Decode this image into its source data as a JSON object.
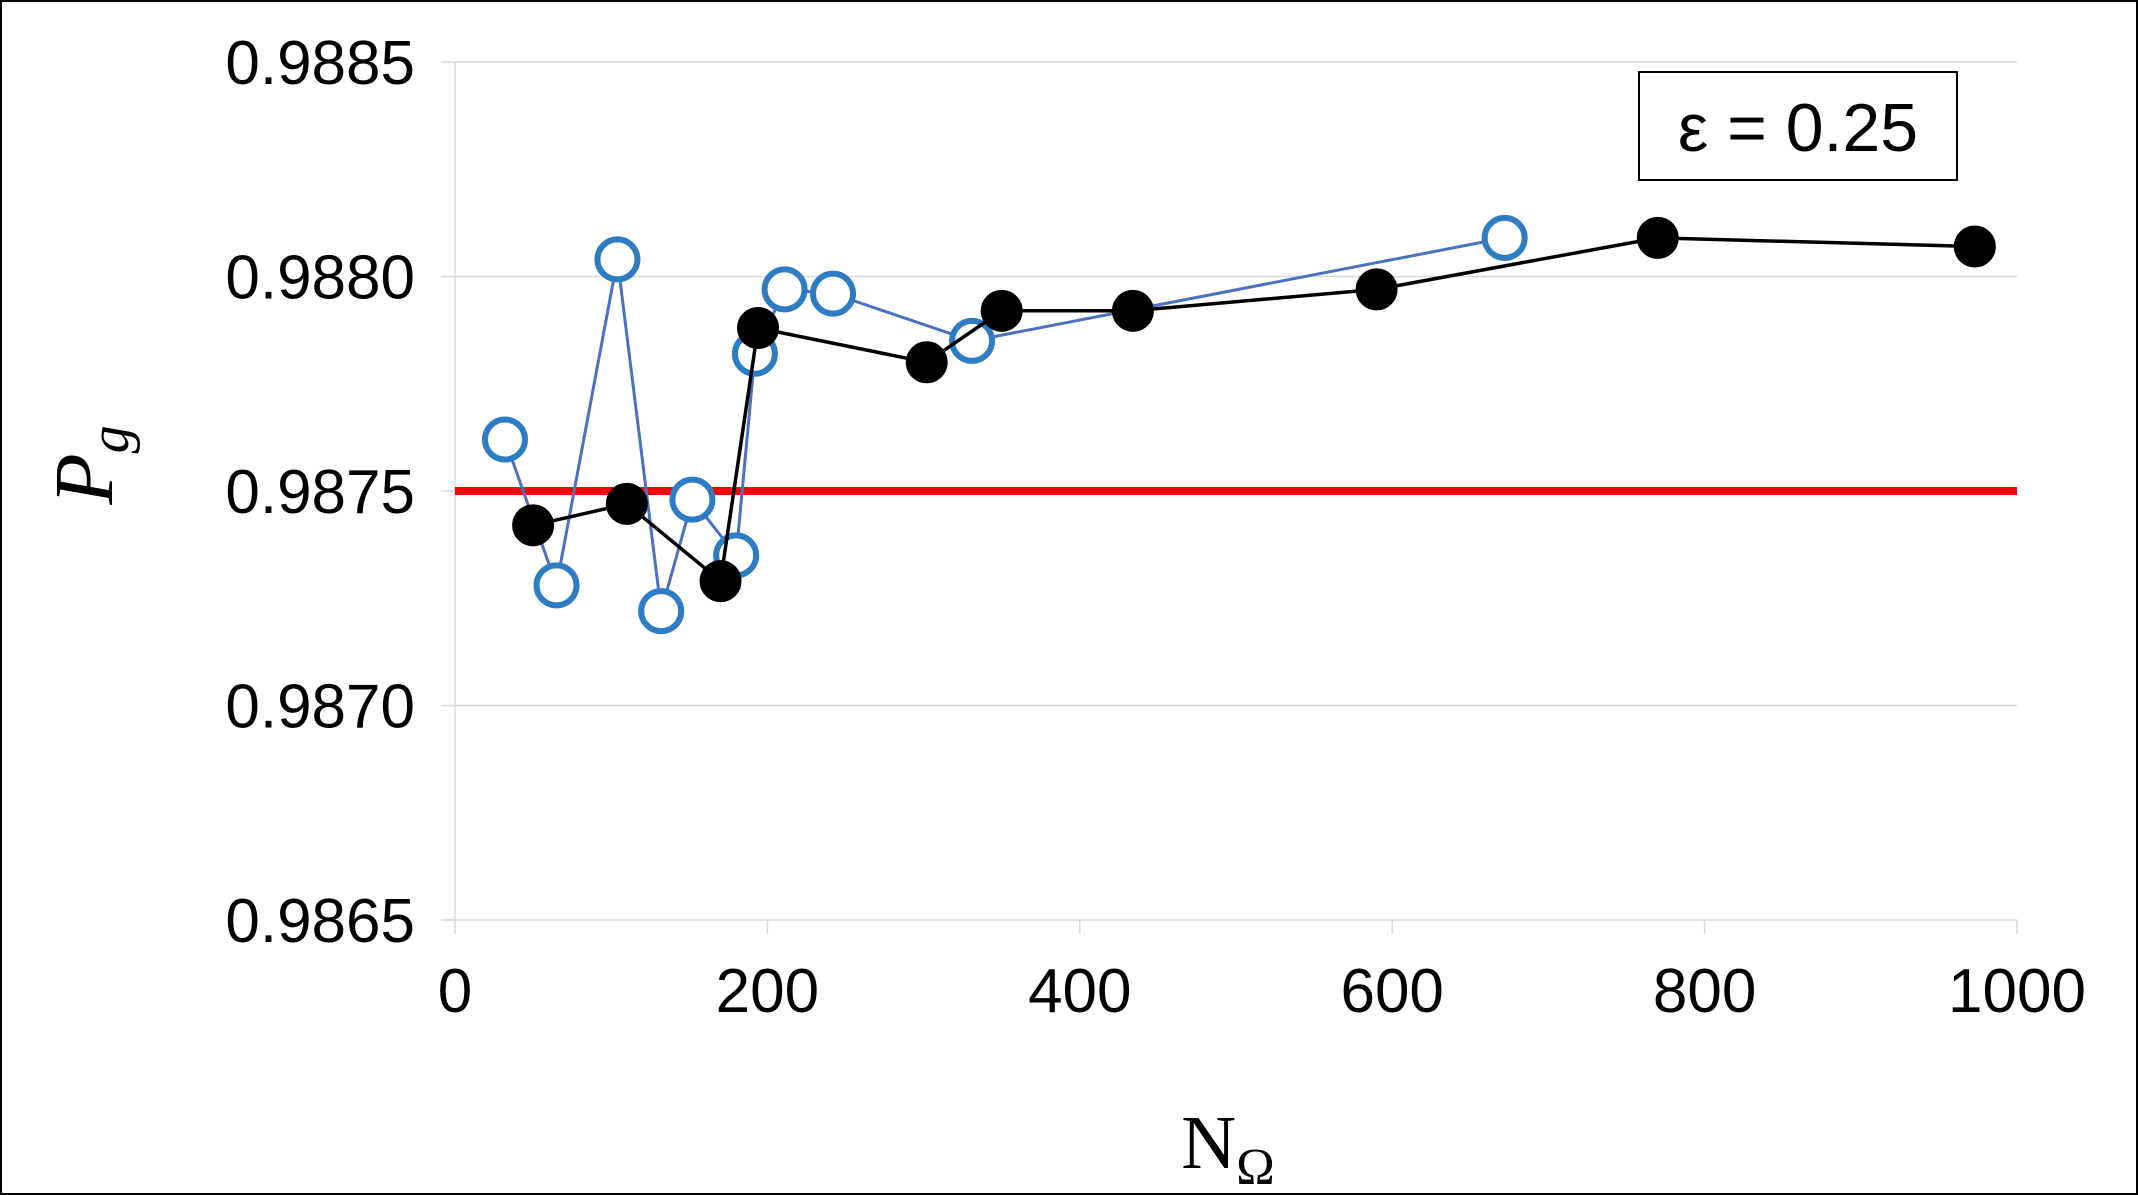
{
  "chart_data": {
    "type": "scatter",
    "title": "",
    "xlabel": "N",
    "xlabel_sub": "Ω",
    "ylabel": "P",
    "ylabel_sub": "g",
    "xlim": [
      0,
      1000
    ],
    "ylim": [
      0.9865,
      0.9885
    ],
    "x_ticks": [
      0,
      200,
      400,
      600,
      800,
      1000
    ],
    "x_tick_labels": [
      "0",
      "200",
      "400",
      "600",
      "800",
      "1000"
    ],
    "y_ticks": [
      0.9865,
      0.987,
      0.9875,
      0.988,
      0.9885
    ],
    "y_tick_labels": [
      "0.9865",
      "0.9870",
      "0.9875",
      "0.9880",
      "0.9885"
    ],
    "grid": "horizontal",
    "legend": "none",
    "annotation": "ε = 0.25",
    "annotation_position": "top-right",
    "reference_line": {
      "y": 0.9875,
      "color": "#ff0000"
    },
    "series": [
      {
        "marker": "open-circle",
        "color": "#2e7cc4",
        "line_color": "#4a72c0",
        "x": [
          32,
          65,
          104,
          132,
          152,
          180,
          192,
          211,
          242,
          331,
          672
        ],
        "y": [
          0.98762,
          0.98728,
          0.98804,
          0.98722,
          0.98748,
          0.98735,
          0.98782,
          0.98797,
          0.98796,
          0.98785,
          0.98809
        ]
      },
      {
        "marker": "filled-circle",
        "color": "#000000",
        "line_color": "#000000",
        "x": [
          50,
          110,
          170,
          194,
          302,
          350,
          434,
          590,
          770,
          973
        ],
        "y": [
          0.98742,
          0.98747,
          0.98729,
          0.98788,
          0.9878,
          0.98792,
          0.98792,
          0.98797,
          0.98809,
          0.98807
        ]
      }
    ]
  }
}
